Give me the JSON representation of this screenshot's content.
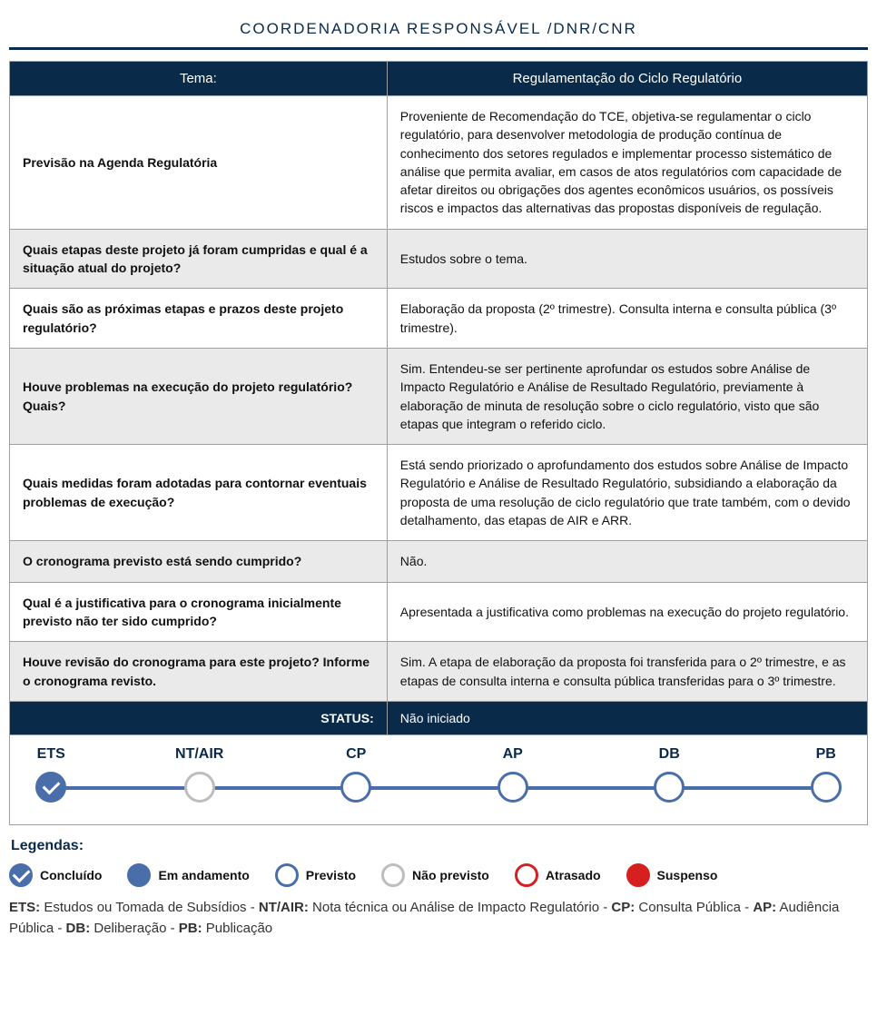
{
  "colors": {
    "navy": "#0a2a4a",
    "line": "#4a6ea9",
    "grey_border": "#9ca0a3",
    "grey_node": "#bdbdbd",
    "red": "#d61f1f",
    "row_alt": "#eaeaea",
    "white": "#ffffff"
  },
  "header": {
    "title": "COORDENADORIA RESPONSÁVEL /DNR/CNR"
  },
  "table": {
    "th_left": "Tema:",
    "th_right": "Regulamentação do Ciclo Regulatório",
    "rows": [
      {
        "q": "Previsão na Agenda Regulatória",
        "a": "Proveniente de Recomendação do TCE, objetiva-se regulamentar o ciclo regulatório, para desenvolver metodologia de produção contínua de conhecimento dos setores regulados e implementar processo sistemático de análise que permita avaliar, em casos de atos regulatórios com capacidade de afetar direitos ou obrigações dos agentes econômicos usuários, os possíveis riscos e impactos das alternativas das propostas disponíveis de regulação."
      },
      {
        "q": "Quais etapas deste projeto já foram cumpridas e qual é a situação atual do projeto?",
        "a": "Estudos sobre o tema."
      },
      {
        "q": "Quais são as próximas etapas e prazos deste projeto regulatório?",
        "a": "Elaboração da proposta (2º trimestre). Consulta interna e consulta pública (3º trimestre)."
      },
      {
        "q": "Houve problemas na execução do projeto regulatório? Quais?",
        "a": "Sim. Entendeu-se ser pertinente aprofundar os estudos sobre Análise de Impacto Regulatório e Análise de Resultado Regulatório, previamente à elaboração de minuta de resolução sobre o ciclo regulatório, visto que são etapas que integram o referido ciclo."
      },
      {
        "q": "Quais medidas foram adotadas para contornar eventuais problemas de execução?",
        "a": "Está sendo priorizado o aprofundamento dos estudos sobre Análise de Impacto Regulatório e Análise de Resultado Regulatório, subsidiando a elaboração da proposta de uma resolução de ciclo regulatório que trate também, com o devido detalhamento, das etapas de AIR e ARR."
      },
      {
        "q": "O cronograma previsto está sendo cumprido?",
        "a": "Não."
      },
      {
        "q": "Qual é a justificativa para o cronograma inicialmente previsto não ter sido cumprido?",
        "a": "Apresentada a justificativa como problemas na execução do projeto regulatório."
      },
      {
        "q": "Houve revisão do cronograma para este projeto? Informe o cronograma revisto.",
        "a": "Sim. A etapa de elaboração da proposta foi transferida para o 2º trimestre, e as etapas de consulta interna e consulta pública transferidas para o 3º trimestre."
      }
    ],
    "status_label": "STATUS:",
    "status_value": "Não iniciado"
  },
  "timeline": {
    "nodes": [
      {
        "code": "ETS",
        "state": "concluido",
        "pos_pct": 3
      },
      {
        "code": "NT/AIR",
        "state": "nao-prev",
        "pos_pct": 21
      },
      {
        "code": "CP",
        "state": "previsto",
        "pos_pct": 40
      },
      {
        "code": "AP",
        "state": "previsto",
        "pos_pct": 59
      },
      {
        "code": "DB",
        "state": "previsto",
        "pos_pct": 78
      },
      {
        "code": "PB",
        "state": "previsto",
        "pos_pct": 97
      }
    ]
  },
  "legend": {
    "title": "Legendas:",
    "items": [
      {
        "label": "Concluído",
        "state": "concluido"
      },
      {
        "label": "Em andamento",
        "state": "andamento"
      },
      {
        "label": "Previsto",
        "state": "previsto"
      },
      {
        "label": "Não previsto",
        "state": "nao-prev"
      },
      {
        "label": "Atrasado",
        "state": "atrasado"
      },
      {
        "label": "Suspenso",
        "state": "suspenso"
      }
    ],
    "abbr": [
      {
        "k": "ETS",
        "v": "Estudos ou Tomada de Subsídios"
      },
      {
        "k": "NT/AIR",
        "v": "Nota técnica ou Análise de Impacto Regulatório"
      },
      {
        "k": "CP",
        "v": "Consulta Pública"
      },
      {
        "k": "AP",
        "v": "Audiência Pública"
      },
      {
        "k": "DB",
        "v": "Deliberação"
      },
      {
        "k": "PB",
        "v": "Publicação"
      }
    ]
  }
}
